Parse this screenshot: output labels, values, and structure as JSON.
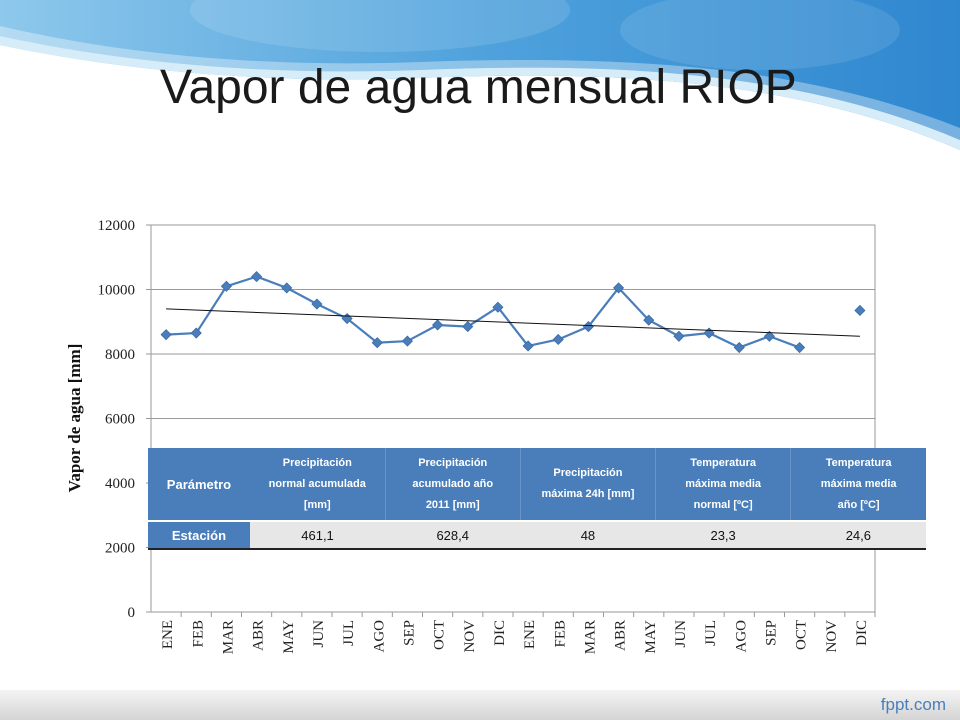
{
  "slide": {
    "title": "Vapor de agua mensual RIOP",
    "footer_logo": "fppt.com",
    "colors": {
      "banner": "#4f9fd6",
      "banner_light": "#b9dcf2",
      "series": "#4a7ebb",
      "trend": "#111111"
    }
  },
  "chart_data": {
    "type": "line",
    "title": "",
    "xlabel": "",
    "ylabel": "Vapor de agua [mm]",
    "ylim": [
      0,
      12000
    ],
    "yticks": [
      0,
      2000,
      4000,
      6000,
      8000,
      10000,
      12000
    ],
    "grid": "horizontal",
    "legend": "none",
    "categories": [
      "ENE",
      "FEB",
      "MAR",
      "ABR",
      "MAY",
      "JUN",
      "JUL",
      "AGO",
      "SEP",
      "OCT",
      "NOV",
      "DIC",
      "ENE",
      "FEB",
      "MAR",
      "ABR",
      "MAY",
      "JUN",
      "JUL",
      "AGO",
      "SEP",
      "OCT",
      "NOV",
      "DIC"
    ],
    "series": [
      {
        "values": [
          8600,
          8650,
          10100,
          10400,
          10050,
          9550,
          9100,
          8350,
          8400,
          8900,
          8850,
          9450,
          8250,
          8450,
          8850,
          10050,
          9050,
          8550,
          8650,
          8200,
          8550,
          8200,
          null,
          9350
        ]
      }
    ],
    "trendline": {
      "start": 9400,
      "end": 8550
    }
  },
  "table": {
    "header_label": "Parámetro",
    "columns": [
      {
        "lines": [
          "Precipitación",
          "normal acumulada",
          "[mm]"
        ]
      },
      {
        "lines": [
          "Precipitación",
          "acumulado año",
          "2011 [mm]"
        ]
      },
      {
        "lines": [
          "Precipitación",
          "máxima 24h [mm]"
        ]
      },
      {
        "lines": [
          "Temperatura",
          "máxima media",
          "normal [ºC]"
        ]
      },
      {
        "lines": [
          "Temperatura",
          "máxima media",
          "año [ºC]"
        ]
      }
    ],
    "row": {
      "label": "Estación",
      "values": [
        "461,1",
        "628,4",
        "48",
        "23,3",
        "24,6"
      ]
    }
  }
}
